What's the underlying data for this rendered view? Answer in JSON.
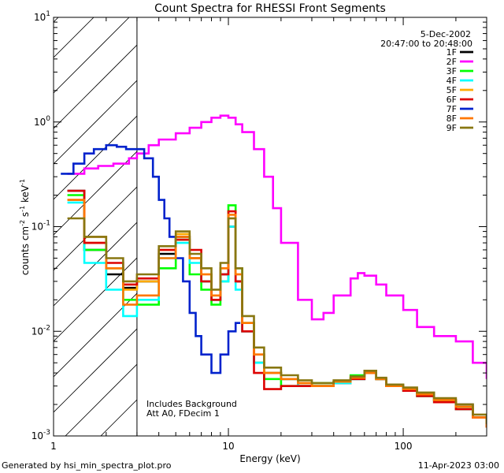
{
  "chart_data": {
    "type": "line",
    "title": "Count Spectra for RHESSI Front Segments",
    "xlabel": "Energy (keV)",
    "ylabel": {
      "base": "counts cm",
      "exp1": "-2",
      "mid": " s",
      "exp2": "-1",
      "tail": " keV",
      "exp3": "-1"
    },
    "xscale": "log",
    "yscale": "log",
    "xlim": [
      1,
      300
    ],
    "ylim": [
      0.001,
      10
    ],
    "xticks": [
      {
        "value": 1,
        "label": "1"
      },
      {
        "value": 10,
        "label": "10"
      },
      {
        "value": 100,
        "label": "100"
      }
    ],
    "yticks": [
      {
        "value": 10,
        "mant": "10",
        "exp": "1"
      },
      {
        "value": 1,
        "mant": "10",
        "exp": "0"
      },
      {
        "value": 0.1,
        "mant": "10",
        "exp": "-1"
      },
      {
        "value": 0.01,
        "mant": "10",
        "exp": "-2"
      },
      {
        "value": 0.001,
        "mant": "10",
        "exp": "-3"
      }
    ],
    "excluded_region": [
      1,
      3
    ],
    "date": "5-Dec-2002",
    "time_range": "20:47:00 to 20:48:00",
    "annotations": [
      "Includes Background",
      "Att A0, FDecim 1"
    ],
    "series": [
      {
        "name": "1F",
        "color": "#000000",
        "x": [
          1.2,
          1.5,
          2.0,
          2.5,
          3,
          4,
          5,
          6,
          7,
          8,
          9,
          10,
          11,
          12,
          14,
          16,
          20,
          25,
          30,
          40,
          50,
          60,
          70,
          80,
          100,
          120,
          150,
          200,
          250,
          300
        ],
        "y": [
          0.22,
          0.06,
          0.035,
          0.026,
          0.03,
          0.055,
          0.08,
          0.05,
          0.03,
          0.02,
          0.035,
          0.1,
          0.03,
          0.01,
          0.005,
          0.004,
          0.0035,
          0.003,
          0.003,
          0.0032,
          0.0035,
          0.004,
          0.0035,
          0.003,
          0.0028,
          0.0025,
          0.0022,
          0.002,
          0.0015,
          0.0012
        ]
      },
      {
        "name": "2F",
        "color": "#ff00ff",
        "x": [
          1.2,
          1.5,
          1.8,
          2.2,
          2.7,
          3,
          3.5,
          4,
          5,
          6,
          7,
          8,
          9,
          10,
          11,
          12,
          14,
          16,
          18,
          20,
          25,
          30,
          35,
          40,
          50,
          55,
          60,
          70,
          80,
          100,
          120,
          150,
          200,
          250,
          300
        ],
        "y": [
          0.32,
          0.36,
          0.38,
          0.4,
          0.45,
          0.5,
          0.6,
          0.68,
          0.78,
          0.88,
          1.0,
          1.1,
          1.15,
          1.1,
          0.95,
          0.8,
          0.55,
          0.3,
          0.15,
          0.07,
          0.02,
          0.013,
          0.015,
          0.022,
          0.032,
          0.036,
          0.034,
          0.028,
          0.022,
          0.016,
          0.011,
          0.009,
          0.008,
          0.005,
          0.0035
        ]
      },
      {
        "name": "3F",
        "color": "#00ff00",
        "x": [
          1.2,
          1.5,
          2.0,
          2.5,
          3,
          4,
          5,
          6,
          7,
          8,
          9,
          10,
          11,
          12,
          14,
          16,
          20,
          25,
          30,
          40,
          50,
          60,
          70,
          80,
          100,
          120,
          150,
          200,
          250,
          300
        ],
        "y": [
          0.2,
          0.06,
          0.04,
          0.02,
          0.018,
          0.04,
          0.075,
          0.035,
          0.025,
          0.018,
          0.03,
          0.16,
          0.04,
          0.012,
          0.005,
          0.0035,
          0.003,
          0.003,
          0.0032,
          0.0033,
          0.0038,
          0.004,
          0.0035,
          0.003,
          0.0027,
          0.0024,
          0.0021,
          0.0018,
          0.0015,
          0.0012
        ]
      },
      {
        "name": "4F",
        "color": "#00ffff",
        "x": [
          1.2,
          1.5,
          2.0,
          2.5,
          3,
          4,
          5,
          6,
          7,
          8,
          9,
          10,
          11,
          12,
          14,
          16,
          20,
          25,
          30,
          40,
          50,
          60,
          70,
          80,
          100,
          120,
          150,
          200,
          250,
          300
        ],
        "y": [
          0.17,
          0.045,
          0.025,
          0.014,
          0.02,
          0.05,
          0.07,
          0.045,
          0.03,
          0.02,
          0.03,
          0.1,
          0.025,
          0.01,
          0.005,
          0.004,
          0.0035,
          0.003,
          0.003,
          0.0032,
          0.0035,
          0.004,
          0.0035,
          0.003,
          0.0027,
          0.0024,
          0.0021,
          0.0018,
          0.0015,
          0.0012
        ]
      },
      {
        "name": "5F",
        "color": "#ffaa00",
        "x": [
          1.2,
          1.5,
          2.0,
          2.5,
          3,
          4,
          5,
          6,
          7,
          8,
          9,
          10,
          11,
          12,
          14,
          16,
          20,
          25,
          30,
          40,
          50,
          60,
          70,
          80,
          100,
          120,
          150,
          200,
          250,
          300
        ],
        "y": [
          0.18,
          0.07,
          0.04,
          0.025,
          0.03,
          0.06,
          0.085,
          0.05,
          0.035,
          0.022,
          0.04,
          0.12,
          0.035,
          0.012,
          0.006,
          0.004,
          0.0035,
          0.0032,
          0.003,
          0.0033,
          0.0036,
          0.004,
          0.0035,
          0.003,
          0.0028,
          0.0025,
          0.0022,
          0.0019,
          0.0015,
          0.0012
        ]
      },
      {
        "name": "6F",
        "color": "#dd0000",
        "x": [
          1.2,
          1.5,
          2.0,
          2.5,
          3,
          4,
          5,
          6,
          7,
          8,
          9,
          10,
          11,
          12,
          14,
          16,
          20,
          25,
          30,
          40,
          50,
          60,
          70,
          80,
          100,
          120,
          150,
          200,
          250,
          300
        ],
        "y": [
          0.22,
          0.07,
          0.045,
          0.028,
          0.032,
          0.06,
          0.075,
          0.06,
          0.03,
          0.02,
          0.035,
          0.14,
          0.03,
          0.01,
          0.004,
          0.0028,
          0.003,
          0.003,
          0.003,
          0.0033,
          0.0035,
          0.004,
          0.0035,
          0.003,
          0.0027,
          0.0024,
          0.0021,
          0.0018,
          0.0015,
          0.0012
        ]
      },
      {
        "name": "7F",
        "color": "#0022cc",
        "x": [
          1.1,
          1.3,
          1.5,
          1.7,
          2.0,
          2.3,
          2.6,
          3,
          3.3,
          3.7,
          4.0,
          4.3,
          4.6,
          5.0,
          5.5,
          6.0,
          6.5,
          7,
          8,
          9,
          10,
          11
        ],
        "y": [
          0.32,
          0.4,
          0.5,
          0.55,
          0.6,
          0.58,
          0.55,
          0.55,
          0.45,
          0.3,
          0.18,
          0.12,
          0.08,
          0.05,
          0.03,
          0.015,
          0.009,
          0.006,
          0.004,
          0.006,
          0.01,
          0.012
        ]
      },
      {
        "name": "8F",
        "color": "#ff7700",
        "x": [
          1.2,
          1.5,
          2.0,
          2.5,
          3,
          4,
          5,
          6,
          7,
          8,
          9,
          10,
          11,
          12,
          14,
          16,
          20,
          25,
          30,
          40,
          50,
          60,
          70,
          80,
          100,
          120,
          150,
          200,
          250,
          300
        ],
        "y": [
          0.18,
          0.08,
          0.04,
          0.018,
          0.022,
          0.05,
          0.08,
          0.05,
          0.035,
          0.022,
          0.04,
          0.13,
          0.035,
          0.012,
          0.006,
          0.004,
          0.0035,
          0.0032,
          0.003,
          0.0033,
          0.0036,
          0.004,
          0.0035,
          0.003,
          0.0028,
          0.0025,
          0.0022,
          0.0019,
          0.0015,
          0.0012
        ]
      },
      {
        "name": "9F",
        "color": "#887711",
        "x": [
          1.2,
          1.5,
          2.0,
          2.5,
          3,
          4,
          5,
          6,
          7,
          8,
          9,
          10,
          11,
          12,
          14,
          16,
          20,
          25,
          30,
          40,
          50,
          60,
          70,
          80,
          100,
          120,
          150,
          200,
          250,
          300
        ],
        "y": [
          0.12,
          0.08,
          0.05,
          0.03,
          0.035,
          0.065,
          0.09,
          0.055,
          0.04,
          0.025,
          0.045,
          0.12,
          0.04,
          0.014,
          0.007,
          0.0045,
          0.0038,
          0.0034,
          0.0032,
          0.0034,
          0.0037,
          0.0042,
          0.0036,
          0.0031,
          0.0029,
          0.0026,
          0.0023,
          0.002,
          0.0016,
          0.0013
        ]
      }
    ]
  },
  "footer": {
    "generated_by": "Generated by hsi_min_spectra_plot.pro",
    "date": "11-Apr-2023 03:00"
  }
}
